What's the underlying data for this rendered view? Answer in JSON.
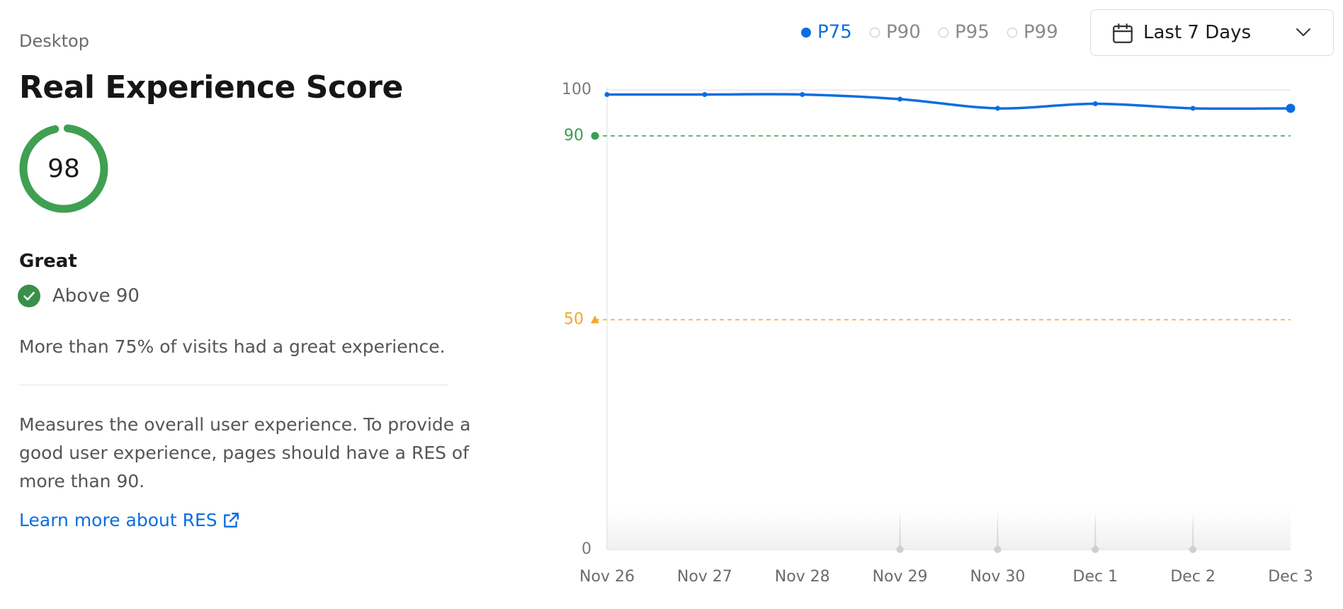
{
  "header": {
    "device": "Desktop",
    "title": "Real Experience Score"
  },
  "score": {
    "value": 98,
    "color": "#3f9f52"
  },
  "rating": {
    "label": "Great",
    "criterion": "Above 90"
  },
  "summary": "More than 75% of visits had a great experience.",
  "description": "Measures the overall user experience. To provide a good user experience, pages should have a RES of more than 90.",
  "link": "Learn more about RES",
  "range": "Last 7 Days",
  "chart_data": {
    "type": "line",
    "categories": [
      "Nov 26",
      "Nov 27",
      "Nov 28",
      "Nov 29",
      "Nov 30",
      "Dec 1",
      "Dec 2",
      "Dec 3"
    ],
    "series": [
      {
        "name": "P75",
        "color": "#0b6ee0",
        "values": [
          99,
          99,
          99,
          98,
          96,
          97,
          96,
          96
        ]
      }
    ],
    "inactive_series": [
      "P90",
      "P95",
      "P99"
    ],
    "ylim": [
      0,
      100
    ],
    "yticks": [
      0,
      100
    ],
    "thresholds": [
      {
        "value": 90,
        "color": "#3a9e4f",
        "marker": "circle"
      },
      {
        "value": 50,
        "color": "#f5a623",
        "marker": "triangle"
      }
    ]
  }
}
